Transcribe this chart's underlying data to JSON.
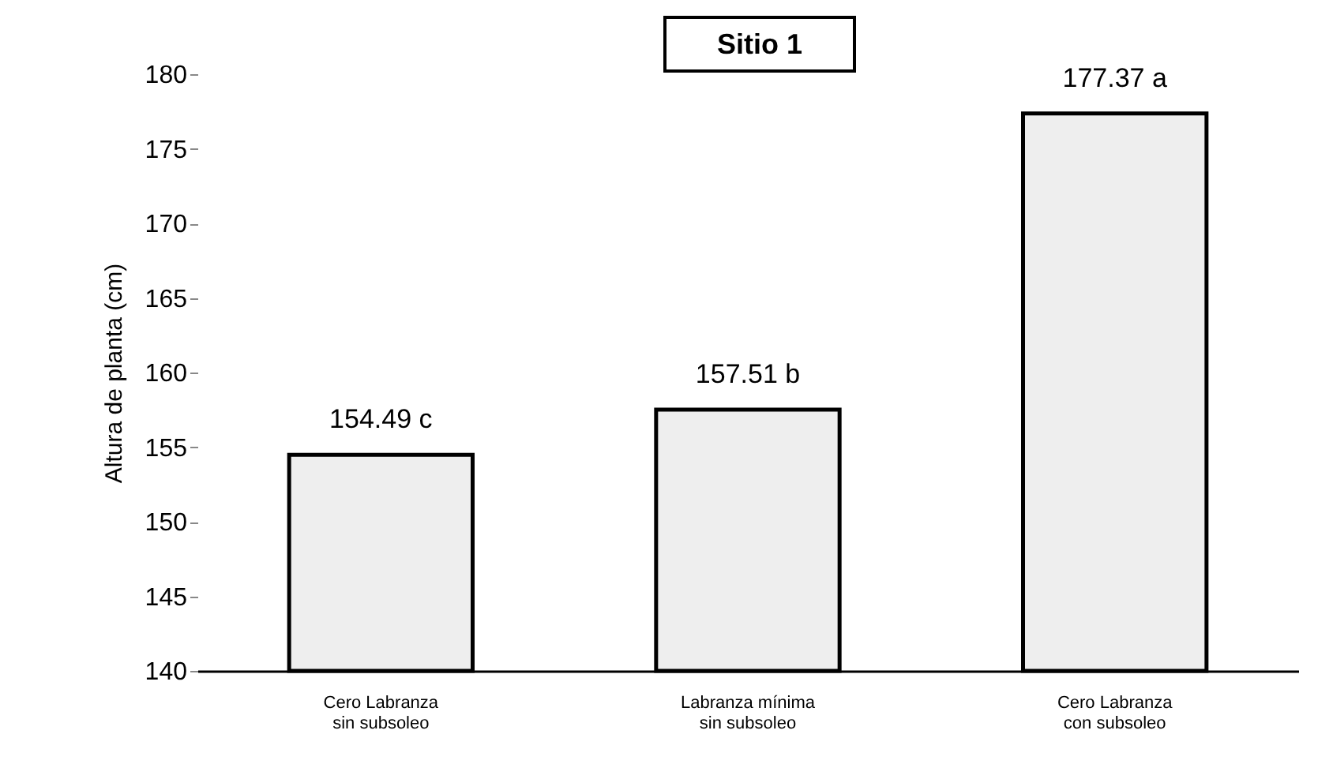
{
  "chart_data": {
    "type": "bar",
    "title": "Sitio 1",
    "ylabel": "Altura de planta (cm)",
    "categories": [
      "Cero Labranza\nsin subsoleo",
      "Labranza mínima\nsin subsoleo",
      "Cero Labranza\ncon subsoleo"
    ],
    "values": [
      154.49,
      157.51,
      177.37
    ],
    "value_labels": [
      "154.49 c",
      "157.51 b",
      "177.37 a"
    ],
    "color": "#eeeeee",
    "ylim": [
      140,
      180
    ],
    "yticks": [
      140,
      145,
      150,
      155,
      160,
      165,
      170,
      175,
      180
    ],
    "grid": false
  }
}
